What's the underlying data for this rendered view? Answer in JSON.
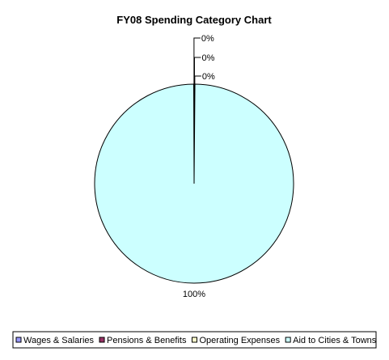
{
  "chart_data": {
    "type": "pie",
    "title": "FY08 Spending Category Chart",
    "series": [
      {
        "name": "Wages & Salaries",
        "value": 0.1,
        "label": "0%",
        "color": "#9999ff"
      },
      {
        "name": "Pensions & Benefits",
        "value": 0.05,
        "label": "0%",
        "color": "#993366"
      },
      {
        "name": "Operating Expenses",
        "value": 0.05,
        "label": "0%",
        "color": "#ffffcc"
      },
      {
        "name": "Aid to Cities & Towns",
        "value": 99.8,
        "label": "100%",
        "color": "#ccffff"
      }
    ],
    "legend_position": "bottom"
  }
}
